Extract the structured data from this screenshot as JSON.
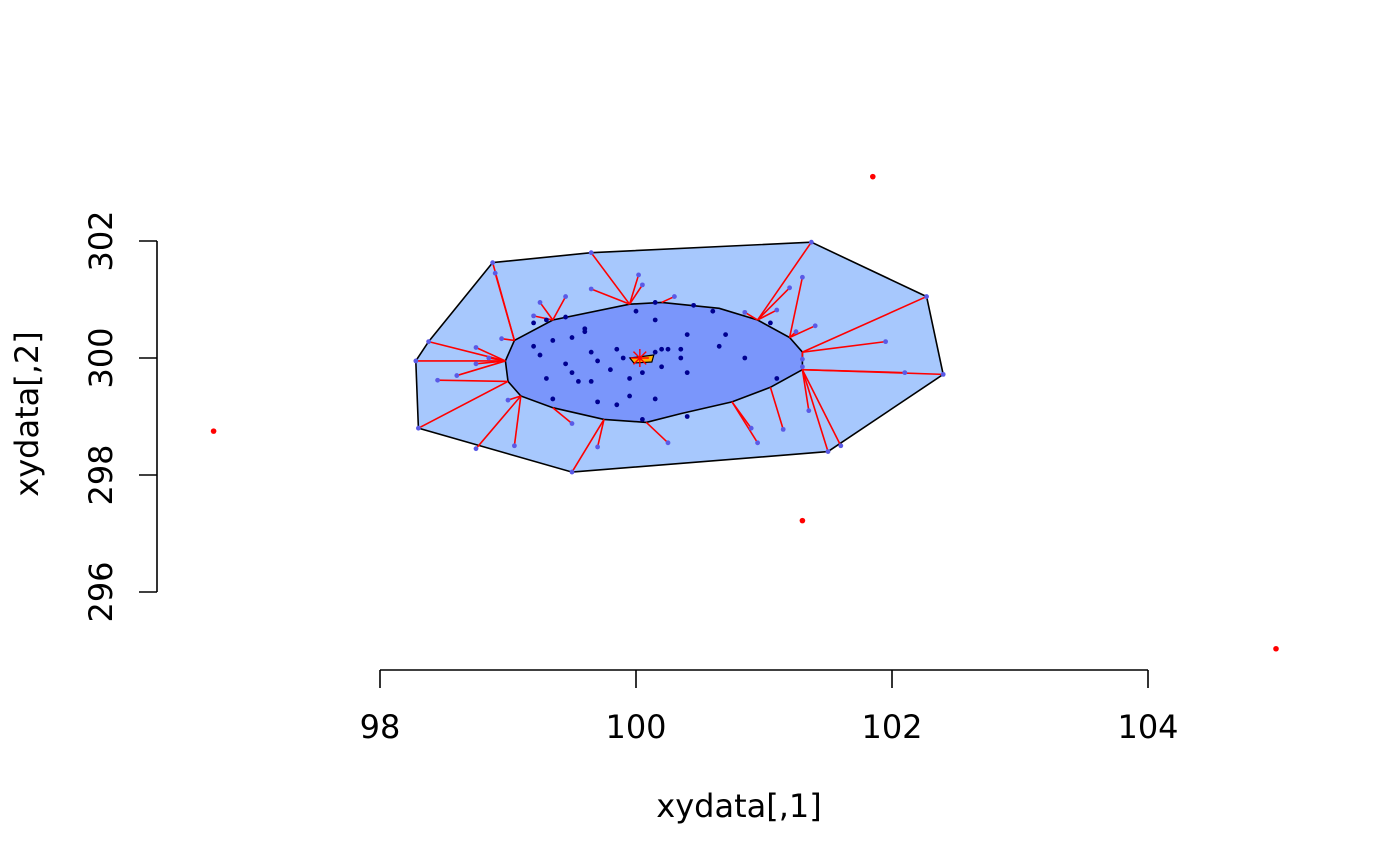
{
  "chart_data": {
    "type": "scatter",
    "title": "",
    "xlabel": "xydata[,1]",
    "ylabel": "xydata[,2]",
    "xlim": [
      98,
      104
    ],
    "ylim": [
      296,
      302
    ],
    "xticks": [
      98,
      100,
      102,
      104
    ],
    "yticks": [
      296,
      298,
      300,
      302
    ],
    "grid": false,
    "colors": {
      "bag": "#a7c8fd",
      "loop": "#7a96fb",
      "inlier_point": "#000090",
      "loop_point": "#5a5ae6",
      "whisker": "#ff0000",
      "outlier": "#ff0000",
      "median": "#ffb000"
    },
    "center": [
      100.03,
      300.0
    ],
    "bag_hull": [
      [
        99.05,
        300.3
      ],
      [
        99.35,
        300.65
      ],
      [
        99.95,
        300.92
      ],
      [
        100.2,
        300.95
      ],
      [
        100.65,
        300.85
      ],
      [
        100.95,
        300.65
      ],
      [
        101.2,
        300.35
      ],
      [
        101.3,
        300.1
      ],
      [
        101.3,
        299.8
      ],
      [
        101.05,
        299.5
      ],
      [
        100.75,
        299.25
      ],
      [
        100.35,
        299.05
      ],
      [
        100.08,
        298.9
      ],
      [
        99.75,
        298.95
      ],
      [
        99.35,
        299.15
      ],
      [
        99.1,
        299.35
      ],
      [
        99.0,
        299.6
      ],
      [
        98.98,
        299.95
      ]
    ],
    "loop_hull": [
      [
        98.88,
        301.63
      ],
      [
        99.65,
        301.8
      ],
      [
        101.37,
        301.98
      ],
      [
        102.27,
        301.05
      ],
      [
        102.4,
        299.72
      ],
      [
        101.5,
        298.4
      ],
      [
        99.5,
        298.05
      ],
      [
        98.3,
        298.8
      ],
      [
        98.28,
        299.95
      ],
      [
        98.38,
        300.28
      ]
    ],
    "inner_points": [
      [
        99.2,
        300.6
      ],
      [
        99.3,
        300.65
      ],
      [
        99.45,
        300.7
      ],
      [
        99.6,
        300.45
      ],
      [
        99.5,
        300.35
      ],
      [
        99.35,
        300.3
      ],
      [
        99.2,
        300.2
      ],
      [
        99.25,
        300.05
      ],
      [
        99.45,
        299.9
      ],
      [
        99.5,
        299.75
      ],
      [
        99.65,
        299.6
      ],
      [
        99.55,
        299.6
      ],
      [
        99.3,
        299.65
      ],
      [
        99.35,
        299.3
      ],
      [
        99.7,
        299.25
      ],
      [
        99.85,
        299.2
      ],
      [
        99.95,
        299.35
      ],
      [
        100.15,
        299.3
      ],
      [
        100.05,
        298.95
      ],
      [
        100.4,
        299.0
      ],
      [
        99.65,
        300.1
      ],
      [
        99.7,
        299.95
      ],
      [
        99.8,
        299.8
      ],
      [
        99.95,
        299.65
      ],
      [
        100.05,
        299.75
      ],
      [
        100.2,
        299.85
      ],
      [
        100.4,
        299.75
      ],
      [
        100.35,
        300.0
      ],
      [
        100.35,
        300.15
      ],
      [
        100.2,
        300.15
      ],
      [
        100.25,
        300.15
      ],
      [
        100.15,
        300.1
      ],
      [
        99.85,
        300.15
      ],
      [
        99.9,
        300.0
      ],
      [
        99.6,
        300.5
      ],
      [
        100.0,
        300.8
      ],
      [
        100.15,
        300.65
      ],
      [
        100.15,
        300.95
      ],
      [
        100.4,
        300.4
      ],
      [
        100.45,
        300.9
      ],
      [
        100.6,
        300.8
      ],
      [
        100.65,
        300.2
      ],
      [
        100.7,
        300.4
      ],
      [
        100.85,
        300.0
      ],
      [
        101.05,
        300.6
      ],
      [
        101.1,
        299.65
      ]
    ],
    "loop_points": [
      [
        98.88,
        301.63
      ],
      [
        98.9,
        301.45
      ],
      [
        99.65,
        301.8
      ],
      [
        99.65,
        301.18
      ],
      [
        100.02,
        301.42
      ],
      [
        100.05,
        301.25
      ],
      [
        100.3,
        301.05
      ],
      [
        99.45,
        301.05
      ],
      [
        99.25,
        300.95
      ],
      [
        99.2,
        300.72
      ],
      [
        98.38,
        300.28
      ],
      [
        98.95,
        300.33
      ],
      [
        98.75,
        300.18
      ],
      [
        98.28,
        299.95
      ],
      [
        98.85,
        300.0
      ],
      [
        98.75,
        299.9
      ],
      [
        98.6,
        299.7
      ],
      [
        98.45,
        299.62
      ],
      [
        98.3,
        298.8
      ],
      [
        99.0,
        299.28
      ],
      [
        98.75,
        298.45
      ],
      [
        99.05,
        298.5
      ],
      [
        99.5,
        298.05
      ],
      [
        99.5,
        298.88
      ],
      [
        99.7,
        298.48
      ],
      [
        100.25,
        298.55
      ],
      [
        100.95,
        298.55
      ],
      [
        100.9,
        298.8
      ],
      [
        101.15,
        298.78
      ],
      [
        101.35,
        299.1
      ],
      [
        101.5,
        298.4
      ],
      [
        101.6,
        298.5
      ],
      [
        102.4,
        299.72
      ],
      [
        102.1,
        299.75
      ],
      [
        101.3,
        299.85
      ],
      [
        101.3,
        299.98
      ],
      [
        101.95,
        300.28
      ],
      [
        101.4,
        300.55
      ],
      [
        101.25,
        300.45
      ],
      [
        101.1,
        300.82
      ],
      [
        100.85,
        300.78
      ],
      [
        101.2,
        301.2
      ],
      [
        101.3,
        301.38
      ],
      [
        101.37,
        301.98
      ],
      [
        102.27,
        301.05
      ]
    ],
    "outliers": [
      [
        96.7,
        298.75
      ],
      [
        101.85,
        303.1
      ],
      [
        101.3,
        297.22
      ],
      [
        105.0,
        295.03
      ]
    ]
  }
}
